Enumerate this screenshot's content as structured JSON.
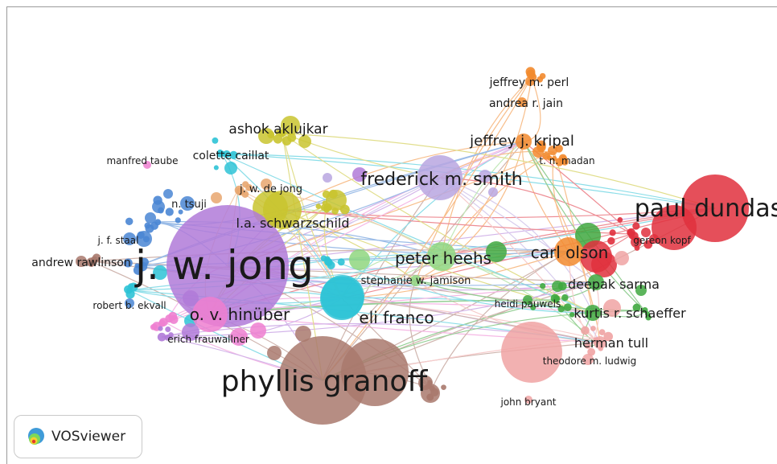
{
  "app": "VOSviewer",
  "colors": {
    "purple": "#b07ad8",
    "brown": "#a9796d",
    "red": "#e0303d",
    "orange": "#f28a2e",
    "green": "#3fa83f",
    "lightgreen": "#8fd67f",
    "cyan": "#2ec3d6",
    "olive": "#c9c42f",
    "blue": "#4a86d4",
    "pink": "#ee7fd0",
    "salmon": "#f0a3a3",
    "lavender": "#b9a6e0",
    "peach": "#e8a66f"
  },
  "nodes": [
    {
      "label": "j. w. jong",
      "color": "purple"
    },
    {
      "label": "phyllis granoff",
      "color": "brown"
    },
    {
      "label": "paul dundas",
      "color": "red"
    },
    {
      "label": "frederick m. smith",
      "color": "lavender"
    },
    {
      "label": "carl olson",
      "color": "orange"
    },
    {
      "label": "peter heehs",
      "color": "lightgreen"
    },
    {
      "label": "eli franco",
      "color": "cyan"
    },
    {
      "label": "o. v. hinüber",
      "color": "pink"
    },
    {
      "label": "jeffrey j. kripal",
      "color": "orange"
    },
    {
      "label": "l.a. schwarzschild",
      "color": "olive"
    },
    {
      "label": "ashok aklujkar",
      "color": "olive"
    },
    {
      "label": "kurtis r. schaeffer",
      "color": "green"
    },
    {
      "label": "deepak sarma",
      "color": "green"
    },
    {
      "label": "herman tull",
      "color": "salmon"
    },
    {
      "label": "andrew rawlinson",
      "color": "brown"
    },
    {
      "label": "colette caillat",
      "color": "cyan"
    },
    {
      "label": "j. w. de jong",
      "color": "peach"
    },
    {
      "label": "jeffrey m. perl",
      "color": "orange"
    },
    {
      "label": "andrea r. jain",
      "color": "orange"
    },
    {
      "label": "stephanie w. jamison",
      "color": "lightgreen"
    },
    {
      "label": "n. tsuji",
      "color": "blue"
    },
    {
      "label": "manfred taube",
      "color": "pink"
    },
    {
      "label": "j. f. staal",
      "color": "blue"
    },
    {
      "label": "robert b. ekvall",
      "color": "blue"
    },
    {
      "label": "erich frauwallner",
      "color": "purple"
    },
    {
      "label": "t. n. madan",
      "color": "orange"
    },
    {
      "label": "gereon kopf",
      "color": "red"
    },
    {
      "label": "heidi pauwels",
      "color": "green"
    },
    {
      "label": "theodore m. ludwig",
      "color": "salmon"
    },
    {
      "label": "john bryant",
      "color": "salmon"
    }
  ]
}
